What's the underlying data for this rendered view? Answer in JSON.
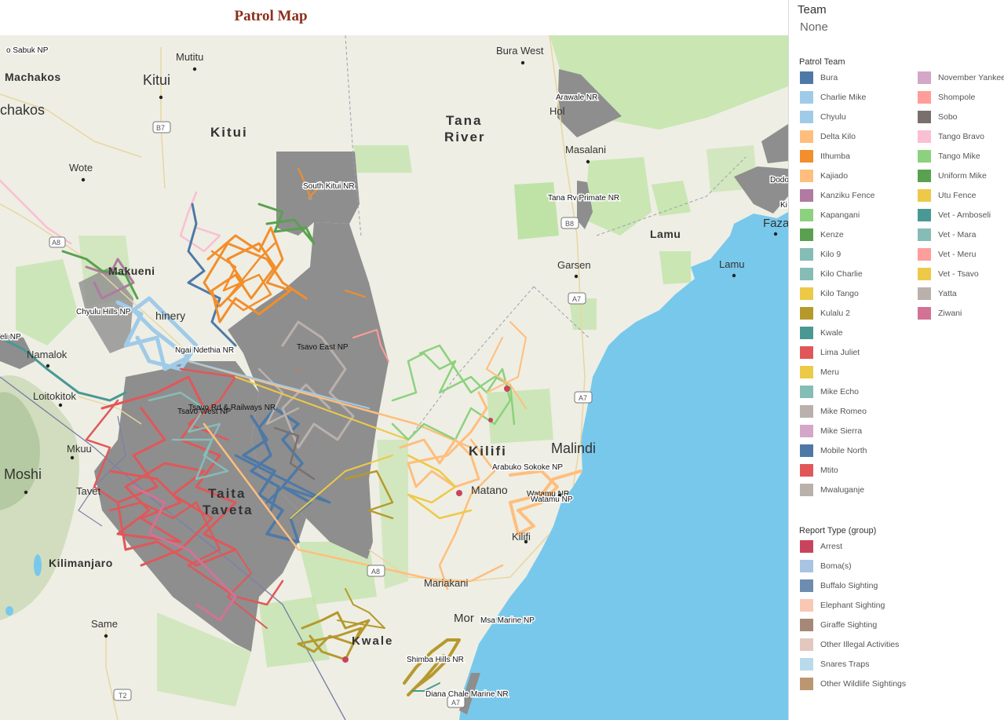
{
  "header": {
    "title": "Patrol Map"
  },
  "filter": {
    "label": "Team",
    "value": "None"
  },
  "patrol_legend": {
    "title": "Patrol Team",
    "items": [
      {
        "label": "Bura",
        "color": "#4e79a7"
      },
      {
        "label": "Charlie Mike",
        "color": "#a0cbe8"
      },
      {
        "label": "Chyulu",
        "color": "#a0cbe8"
      },
      {
        "label": "Delta Kilo",
        "color": "#ffbe7d"
      },
      {
        "label": "Ithumba",
        "color": "#f28e2b"
      },
      {
        "label": "Kajiado",
        "color": "#ffbe7d"
      },
      {
        "label": "Kanziku Fence",
        "color": "#b07aa1"
      },
      {
        "label": "Kapangani",
        "color": "#8cd17d"
      },
      {
        "label": "Kenze",
        "color": "#59a14f"
      },
      {
        "label": "Kilo 9",
        "color": "#86bcb6"
      },
      {
        "label": "Kilo Charlie",
        "color": "#86bcb6"
      },
      {
        "label": "Kilo Tango",
        "color": "#edc948"
      },
      {
        "label": "Kulalu 2",
        "color": "#b6992d"
      },
      {
        "label": "Kwale",
        "color": "#499894"
      },
      {
        "label": "Lima Juliet",
        "color": "#e15759"
      },
      {
        "label": "Meru",
        "color": "#edc948"
      },
      {
        "label": "Mike Echo",
        "color": "#86bcb6"
      },
      {
        "label": "Mike Romeo",
        "color": "#bab0ac"
      },
      {
        "label": "Mike Sierra",
        "color": "#d4a6c8"
      },
      {
        "label": "Mobile North",
        "color": "#4e79a7"
      },
      {
        "label": "Mtito",
        "color": "#e15759"
      },
      {
        "label": "Mwaluganje",
        "color": "#bab0ac"
      },
      {
        "label": "November Yankee",
        "color": "#d4a6c8"
      },
      {
        "label": "Shompole",
        "color": "#ff9d9a"
      },
      {
        "label": "Sobo",
        "color": "#79706e"
      },
      {
        "label": "Tango Bravo",
        "color": "#fabfd2"
      },
      {
        "label": "Tango Mike",
        "color": "#8cd17d"
      },
      {
        "label": "Uniform Mike",
        "color": "#59a14f"
      },
      {
        "label": "Utu Fence",
        "color": "#edc948"
      },
      {
        "label": "Vet - Amboseli",
        "color": "#499894"
      },
      {
        "label": "Vet - Mara",
        "color": "#86bcb6"
      },
      {
        "label": "Vet - Meru",
        "color": "#ff9d9a"
      },
      {
        "label": "Vet - Tsavo",
        "color": "#edc948"
      },
      {
        "label": "Yatta",
        "color": "#bab0ac"
      },
      {
        "label": "Ziwani",
        "color": "#d37295"
      }
    ]
  },
  "report_legend": {
    "title": "Report Type (group)",
    "items": [
      {
        "label": "Arrest",
        "color": "#c8445c"
      },
      {
        "label": "Boma(s)",
        "color": "#a9c4e2"
      },
      {
        "label": "Buffalo Sighting",
        "color": "#6d8cb0"
      },
      {
        "label": "Elephant Sighting",
        "color": "#f8c8b4"
      },
      {
        "label": "Giraffe Sighting",
        "color": "#a68878"
      },
      {
        "label": "Other Illegal Activities",
        "color": "#e3c8c0"
      },
      {
        "label": "Snares Traps",
        "color": "#b9daeb"
      },
      {
        "label": "Other Wildlife Sightings",
        "color": "#bb9670"
      }
    ]
  },
  "map": {
    "colors": {
      "land": "#eeeee4",
      "park_grey": "#8e8e8e",
      "green": "#bfe3a6",
      "ocean": "#78c8ec"
    },
    "places": [
      {
        "text": "o Sabuk NP",
        "size": "small"
      },
      {
        "text": "Mutitu",
        "size": "medium"
      },
      {
        "text": "Machakos",
        "size": "large"
      },
      {
        "text": "Kitui",
        "size": "xlarge"
      },
      {
        "text": "chakos",
        "size": "xlarge"
      },
      {
        "text": "B7",
        "size": "shield"
      },
      {
        "text": "Kitui",
        "size": "region"
      },
      {
        "text": "Wote",
        "size": "medium"
      },
      {
        "text": "South Kitui NR",
        "size": "park"
      },
      {
        "text": "A8",
        "size": "shield"
      },
      {
        "text": "Makueni",
        "size": "large"
      },
      {
        "text": "Chyulu Hills NP",
        "size": "park"
      },
      {
        "text": "hinery",
        "size": "large"
      },
      {
        "text": "Ngai Ndethia NR",
        "size": "park"
      },
      {
        "text": "Tsavo East NP",
        "size": "park"
      },
      {
        "text": "eli NP",
        "size": "park"
      },
      {
        "text": "Namalok",
        "size": "medium"
      },
      {
        "text": "Loitokitok",
        "size": "medium"
      },
      {
        "text": "Tsavo Rd & Railways NR",
        "size": "park"
      },
      {
        "text": "Tsavo West NP",
        "size": "park"
      },
      {
        "text": "Mkuu",
        "size": "medium"
      },
      {
        "text": "Moshi",
        "size": "xlarge"
      },
      {
        "text": "Taita",
        "size": "region"
      },
      {
        "text": "Taveta",
        "size": "region"
      },
      {
        "text": "Tavet",
        "size": "medium"
      },
      {
        "text": "Kilimanjaro",
        "size": "large"
      },
      {
        "text": "Same",
        "size": "medium"
      },
      {
        "text": "T2",
        "size": "shield"
      },
      {
        "text": "Bura West",
        "size": "medium"
      },
      {
        "text": "Arawale NR",
        "size": "park"
      },
      {
        "text": "Hol",
        "size": "medium"
      },
      {
        "text": "Tana",
        "size": "region"
      },
      {
        "text": "River",
        "size": "region"
      },
      {
        "text": "Masalani",
        "size": "medium"
      },
      {
        "text": "Tana Rv Primate NR",
        "size": "park"
      },
      {
        "text": "B8",
        "size": "shield"
      },
      {
        "text": "Garsen",
        "size": "medium"
      },
      {
        "text": "A7",
        "size": "shield"
      },
      {
        "text": "Lamu",
        "size": "large"
      },
      {
        "text": "Lamu",
        "size": "medium"
      },
      {
        "text": "Faza",
        "size": "large"
      },
      {
        "text": "Dodo",
        "size": "park"
      },
      {
        "text": "Ki",
        "size": "park"
      },
      {
        "text": "A7",
        "size": "shield"
      },
      {
        "text": "Malindi",
        "size": "xlarge"
      },
      {
        "text": "Kilifi",
        "size": "region"
      },
      {
        "text": "Arabuko Sokoke NP",
        "size": "park"
      },
      {
        "text": "Matano",
        "size": "large"
      },
      {
        "text": "Watamu NR",
        "size": "park"
      },
      {
        "text": "Watamu NP",
        "size": "park"
      },
      {
        "text": "Kilifi",
        "size": "medium"
      },
      {
        "text": "A8",
        "size": "shield"
      },
      {
        "text": "Mariakani",
        "size": "medium"
      },
      {
        "text": "Mor",
        "size": "large"
      },
      {
        "text": "Msa Marine NP",
        "size": "park"
      },
      {
        "text": "Kwale",
        "size": "region"
      },
      {
        "text": "Shimba Hills NR",
        "size": "park"
      },
      {
        "text": "Diana Chale Marine NR",
        "size": "park"
      },
      {
        "text": "A7",
        "size": "shield"
      }
    ]
  }
}
